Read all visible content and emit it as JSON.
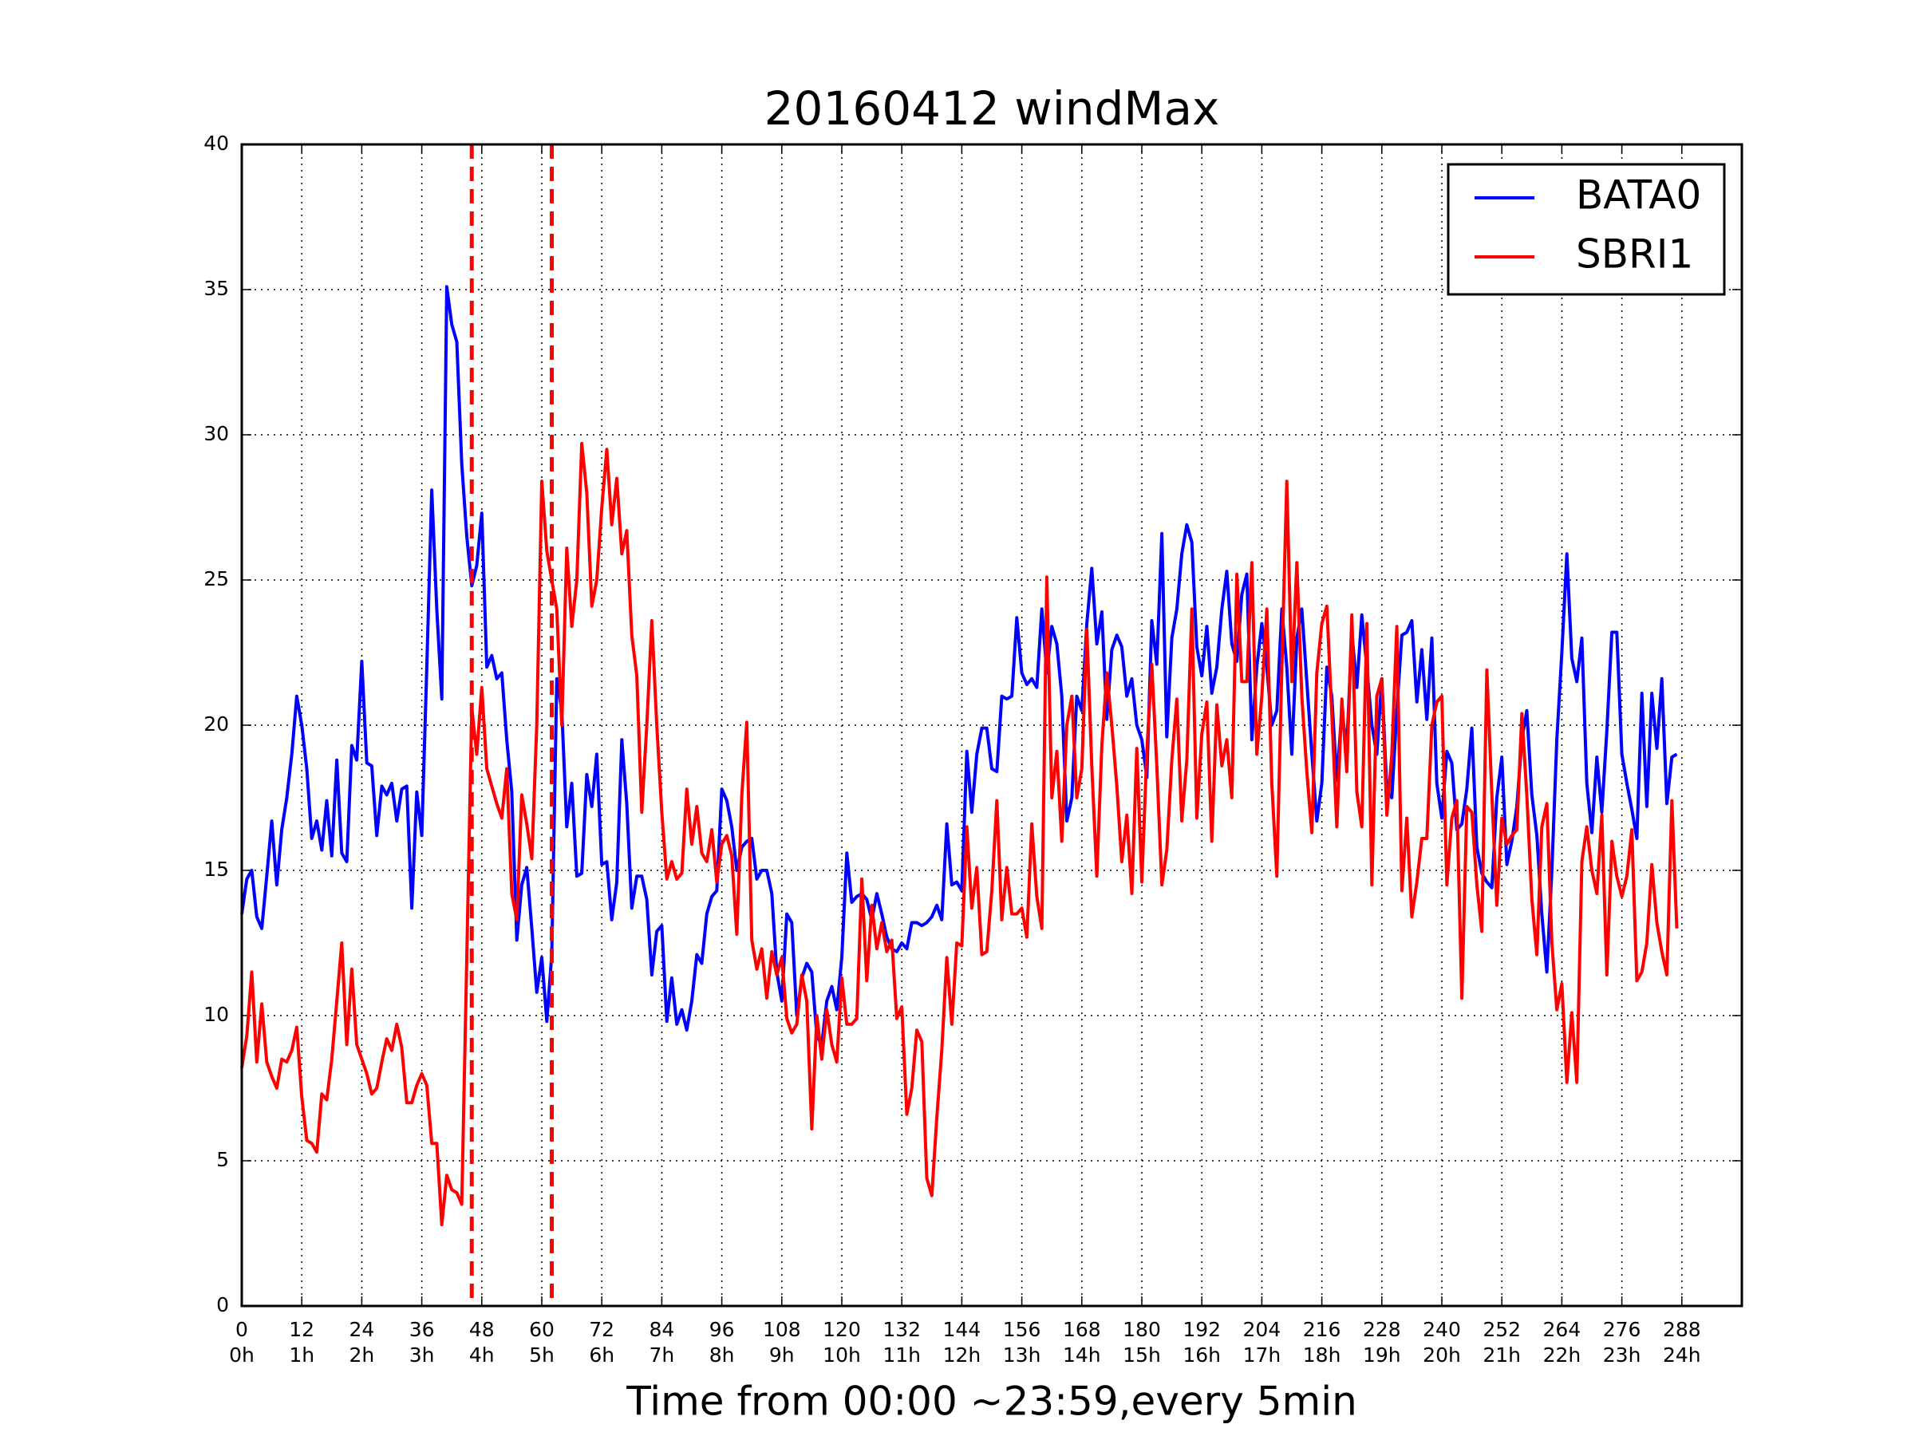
{
  "chart_data": {
    "type": "line",
    "title": "20160412 windMax",
    "x_label": "Time from 00:00 ~23:59,every 5min",
    "xlim": [
      0,
      300
    ],
    "ylim": [
      0,
      40
    ],
    "xticks": [
      0,
      12,
      24,
      36,
      48,
      60,
      72,
      84,
      96,
      108,
      120,
      132,
      144,
      156,
      168,
      180,
      192,
      204,
      216,
      228,
      240,
      252,
      264,
      276,
      288
    ],
    "xtick_sublabels": [
      "0h",
      "1h",
      "2h",
      "3h",
      "4h",
      "5h",
      "6h",
      "7h",
      "8h",
      "9h",
      "10h",
      "11h",
      "12h",
      "13h",
      "14h",
      "15h",
      "16h",
      "17h",
      "18h",
      "19h",
      "20h",
      "21h",
      "22h",
      "23h",
      "24h"
    ],
    "yticks": [
      0,
      5,
      10,
      15,
      20,
      25,
      30,
      35,
      40
    ],
    "grid": true,
    "legend": "upper right",
    "vlines": [
      {
        "x": 46,
        "color": "#ff0000"
      },
      {
        "x": 62,
        "color": "#ff0000"
      }
    ],
    "x": [
      0,
      1,
      2,
      3,
      4,
      5,
      6,
      7,
      8,
      9,
      10,
      11,
      12,
      13,
      14,
      15,
      16,
      17,
      18,
      19,
      20,
      21,
      22,
      23,
      24,
      25,
      26,
      27,
      28,
      29,
      30,
      31,
      32,
      33,
      34,
      35,
      36,
      37,
      38,
      39,
      40,
      41,
      42,
      43,
      44,
      45,
      46,
      47,
      48,
      49,
      50,
      51,
      52,
      53,
      54,
      55,
      56,
      57,
      58,
      59,
      60,
      61,
      62,
      63,
      64,
      65,
      66,
      67,
      68,
      69,
      70,
      71,
      72,
      73,
      74,
      75,
      76,
      77,
      78,
      79,
      80,
      81,
      82,
      83,
      84,
      85,
      86,
      87,
      88,
      89,
      90,
      91,
      92,
      93,
      94,
      95,
      96,
      97,
      98,
      99,
      100,
      101,
      102,
      103,
      104,
      105,
      106,
      107,
      108,
      109,
      110,
      111,
      112,
      113,
      114,
      115,
      116,
      117,
      118,
      119,
      120,
      121,
      122,
      123,
      124,
      125,
      126,
      127,
      128,
      129,
      130,
      131,
      132,
      133,
      134,
      135,
      136,
      137,
      138,
      139,
      140,
      141,
      142,
      143,
      144,
      145,
      146,
      147,
      148,
      149,
      150,
      151,
      152,
      153,
      154,
      155,
      156,
      157,
      158,
      159,
      160,
      161,
      162,
      163,
      164,
      165,
      166,
      167,
      168,
      169,
      170,
      171,
      172,
      173,
      174,
      175,
      176,
      177,
      178,
      179,
      180,
      181,
      182,
      183,
      184,
      185,
      186,
      187,
      188,
      189,
      190,
      191,
      192,
      193,
      194,
      195,
      196,
      197,
      198,
      199,
      200,
      201,
      202,
      203,
      204,
      205,
      206,
      207,
      208,
      209,
      210,
      211,
      212,
      213,
      214,
      215,
      216,
      217,
      218,
      219,
      220,
      221,
      222,
      223,
      224,
      225,
      226,
      227,
      228,
      229,
      230,
      231,
      232,
      233,
      234,
      235,
      236,
      237,
      238,
      239,
      240,
      241,
      242,
      243,
      244,
      245,
      246,
      247,
      248,
      249,
      250,
      251,
      252,
      253,
      254,
      255,
      256,
      257,
      258,
      259,
      260,
      261,
      262,
      263,
      264,
      265,
      266,
      267,
      268,
      269,
      270,
      271,
      272,
      273,
      274,
      275,
      276,
      277,
      278,
      279,
      280,
      281,
      282,
      283,
      284,
      285,
      286,
      287
    ],
    "series": [
      {
        "name": "BATA0",
        "color": "#0000ff",
        "values": [
          13.5,
          14.7,
          15,
          13.4,
          13,
          14.8,
          16.7,
          14.5,
          16.4,
          17.5,
          19,
          21,
          20,
          18.5,
          16.1,
          16.7,
          15.7,
          17.4,
          15.5,
          18.8,
          15.6,
          15.3,
          19.3,
          18.8,
          22.2,
          18.7,
          18.6,
          16.2,
          17.9,
          17.6,
          18,
          16.7,
          17.8,
          17.9,
          13.7,
          17.7,
          16.2,
          22,
          28.1,
          24,
          20.9,
          35.1,
          33.8,
          33.2,
          29,
          26.5,
          24.8,
          25.5,
          27.3,
          22,
          22.4,
          21.6,
          21.8,
          19.5,
          17.7,
          12.6,
          14.5,
          15.1,
          13,
          10.8,
          12,
          9.8,
          12.1,
          21.6,
          20.5,
          16.5,
          18,
          14.8,
          14.9,
          18.3,
          17.2,
          19,
          15.2,
          15.3,
          13.3,
          14.6,
          19.5,
          17.3,
          13.7,
          14.8,
          14.8,
          14,
          11.4,
          12.9,
          13.1,
          9.8,
          11.3,
          9.7,
          10.2,
          9.5,
          10.5,
          12.1,
          11.8,
          13.5,
          14.1,
          14.3,
          17.8,
          17.4,
          16.5,
          15,
          15.8,
          16,
          16.1,
          14.7,
          15,
          15,
          14.2,
          11.5,
          10.5,
          13.5,
          13.2,
          10,
          11.3,
          11.8,
          11.5,
          9.3,
          9,
          10.5,
          11,
          10.2,
          12,
          15.6,
          13.9,
          14.1,
          14.2,
          14,
          13.3,
          14.2,
          13.5,
          12.7,
          12.3,
          12.2,
          12.5,
          12.3,
          13.2,
          13.2,
          13.1,
          13.2,
          13.4,
          13.8,
          13.3,
          16.6,
          14.5,
          14.6,
          14.3,
          19.1,
          17,
          19,
          19.9,
          19.9,
          18.5,
          18.4,
          21,
          20.9,
          21,
          23.7,
          21.8,
          21.4,
          21.6,
          21.3,
          24,
          21.8,
          23.4,
          22.8,
          21,
          16.7,
          17.5,
          21,
          20.5,
          23.5,
          25.4,
          22.8,
          23.9,
          20.2,
          22.6,
          23.1,
          22.7,
          21,
          21.6,
          20,
          19.5,
          18.2,
          23.6,
          22.1,
          26.6,
          19.6,
          23,
          24,
          25.9,
          26.9,
          26.3,
          22.7,
          21.7,
          23.4,
          21.1,
          22,
          24,
          25.3,
          22.8,
          22.2,
          24.5,
          25.2,
          19.5,
          22,
          23.5,
          22,
          20,
          20.5,
          24,
          22,
          19,
          23,
          24,
          21.5,
          19,
          16.7,
          18,
          22,
          21,
          18.1,
          20.5,
          19.2,
          23.2,
          21.3,
          23.8,
          22,
          20,
          19,
          21.6,
          17.7,
          17.5,
          20.5,
          23.1,
          23.2,
          23.6,
          20.8,
          22.6,
          20.2,
          23,
          18,
          16.8,
          19.1,
          18.7,
          16.4,
          16.6,
          17.8,
          19.9,
          15.8,
          14.9,
          14.6,
          14.4,
          17.5,
          18.9,
          15.2,
          16,
          17.2,
          19.5,
          20.5,
          17.6,
          16.2,
          13.5,
          11.5,
          15,
          19.5,
          22.5,
          25.9,
          22.3,
          21.5,
          23,
          18,
          16.3,
          18.9,
          17,
          19.8,
          23.2,
          23.2,
          19,
          18,
          17.1,
          16.1,
          21.1,
          17.2,
          21.1,
          19.2,
          21.6,
          17.3,
          18.9,
          19
        ]
      },
      {
        "name": "SBRI1",
        "color": "#ff0000",
        "values": [
          8.2,
          9.3,
          11.5,
          8.4,
          10.4,
          8.4,
          7.9,
          7.5,
          8.5,
          8.4,
          8.8,
          9.6,
          7.2,
          5.7,
          5.6,
          5.3,
          7.3,
          7.1,
          8.5,
          10.5,
          12.5,
          9,
          11.6,
          9,
          8.5,
          8,
          7.3,
          7.5,
          8.4,
          9.2,
          8.8,
          9.7,
          8.9,
          7,
          7,
          7.6,
          8,
          7.6,
          5.6,
          5.6,
          2.8,
          4.5,
          4,
          3.9,
          3.5,
          12,
          20.6,
          19,
          21.3,
          18.5,
          17.9,
          17.3,
          16.8,
          18.5,
          14.2,
          13.3,
          17.6,
          16.6,
          15.4,
          20,
          28.4,
          26,
          25,
          24,
          20,
          26.1,
          23.4,
          25,
          29.7,
          28,
          24.1,
          25,
          27.5,
          29.5,
          26.9,
          28.5,
          25.9,
          26.7,
          23.1,
          21.7,
          17,
          20,
          23.6,
          20,
          17,
          14.7,
          15.3,
          14.7,
          14.9,
          17.8,
          15.9,
          17.2,
          15.6,
          15.3,
          16.4,
          14.6,
          15.9,
          16.2,
          15.5,
          12.8,
          17.6,
          20.1,
          12.6,
          11.6,
          12.3,
          10.6,
          12.2,
          11.4,
          12,
          9.9,
          9.4,
          9.7,
          11.4,
          10.5,
          6.1,
          10,
          8.5,
          10.2,
          9,
          8.4,
          11.3,
          9.7,
          9.7,
          9.9,
          14.7,
          11.2,
          13.8,
          12.3,
          13.2,
          12.2,
          12.6,
          9.9,
          10.3,
          6.6,
          7.5,
          9.5,
          9.1,
          4.4,
          3.8,
          6.5,
          8.8,
          12,
          9.7,
          12.5,
          12.4,
          16.5,
          13.7,
          15.1,
          12.1,
          12.2,
          14.3,
          17.4,
          13.3,
          15.1,
          13.5,
          13.5,
          13.7,
          12.7,
          16.6,
          14.1,
          13,
          25.1,
          17.5,
          19.1,
          16,
          20,
          21,
          17.5,
          18.5,
          23.3,
          18.6,
          14.8,
          19.3,
          21.8,
          20,
          17.9,
          15.3,
          16.9,
          14.2,
          19.2,
          14.6,
          19.1,
          22.1,
          18.6,
          14.5,
          15.7,
          18.8,
          20.9,
          16.7,
          18.8,
          24,
          16.8,
          19.7,
          20.8,
          16,
          20.7,
          18.6,
          19.5,
          17.5,
          25.2,
          21.5,
          21.5,
          25.6,
          19,
          21,
          24,
          18,
          14.8,
          22,
          28.4,
          21.5,
          25.6,
          21,
          18.4,
          16.3,
          21.8,
          23.5,
          24.1,
          20.4,
          16.5,
          20.9,
          18.4,
          23.8,
          17.7,
          16.5,
          23.5,
          14.5,
          21,
          21.6,
          16.9,
          19,
          23.4,
          14.3,
          16.8,
          13.4,
          14.6,
          16.1,
          16.1,
          20,
          20.8,
          21,
          14.5,
          16.8,
          17.4,
          10.6,
          17.2,
          17,
          14.5,
          12.9,
          21.9,
          17.6,
          13.8,
          16.8,
          15.9,
          16.2,
          16.4,
          20.4,
          17.6,
          14,
          12.1,
          16.5,
          17.3,
          12.5,
          10.2,
          11.1,
          7.7,
          10.1,
          7.7,
          15.3,
          16.5,
          15,
          14.2,
          16.9,
          11.4,
          16,
          14.8,
          14.1,
          14.8,
          16.4,
          11.2,
          11.5,
          12.5,
          15.2,
          13.2,
          12.2,
          11.4,
          17.4,
          13
        ]
      }
    ]
  }
}
